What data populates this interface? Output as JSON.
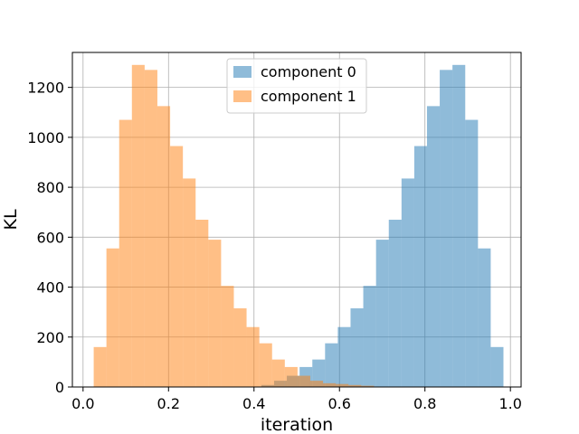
{
  "chart_data": {
    "type": "bar",
    "subtype": "overlapping-histogram",
    "title": "",
    "xlabel": "iteration",
    "ylabel": "KL",
    "xlim": [
      -0.025,
      1.025
    ],
    "ylim": [
      0,
      1340
    ],
    "xticks": [
      0.0,
      0.2,
      0.4,
      0.6,
      0.8,
      1.0
    ],
    "xtick_labels": [
      "0.0",
      "0.2",
      "0.4",
      "0.6",
      "0.8",
      "1.0"
    ],
    "yticks": [
      0,
      200,
      400,
      600,
      800,
      1000,
      1200
    ],
    "ytick_labels": [
      "0",
      "200",
      "400",
      "600",
      "800",
      "1000",
      "1200"
    ],
    "grid": true,
    "legend_position": "upper center",
    "bar_alpha": 0.5,
    "series": [
      {
        "name": "component 0",
        "color": "#1f77b4",
        "bin_edges": [
          0.4172,
          0.447,
          0.4768,
          0.5067,
          0.5365,
          0.5663,
          0.5961,
          0.6259,
          0.6557,
          0.6856,
          0.7154,
          0.7452,
          0.775,
          0.8048,
          0.8346,
          0.8644,
          0.8943,
          0.9241,
          0.9539,
          0.9837
        ],
        "values": [
          8,
          25,
          45,
          80,
          110,
          175,
          240,
          315,
          405,
          590,
          670,
          835,
          965,
          1125,
          1270,
          1290,
          1070,
          555,
          160
        ]
      },
      {
        "name": "component 1",
        "color": "#ff7f0e",
        "bin_edges": [
          0.0249,
          0.0547,
          0.0845,
          0.1143,
          0.1441,
          0.1739,
          0.2038,
          0.2336,
          0.2634,
          0.2932,
          0.323,
          0.3528,
          0.3826,
          0.4125,
          0.4423,
          0.4721,
          0.5019,
          0.5317,
          0.5615,
          0.5913,
          0.6211,
          0.651,
          0.6808
        ],
        "values": [
          160,
          555,
          1070,
          1290,
          1270,
          1125,
          965,
          835,
          670,
          590,
          405,
          315,
          240,
          175,
          110,
          80,
          45,
          25,
          15,
          12,
          8,
          5
        ]
      }
    ]
  }
}
